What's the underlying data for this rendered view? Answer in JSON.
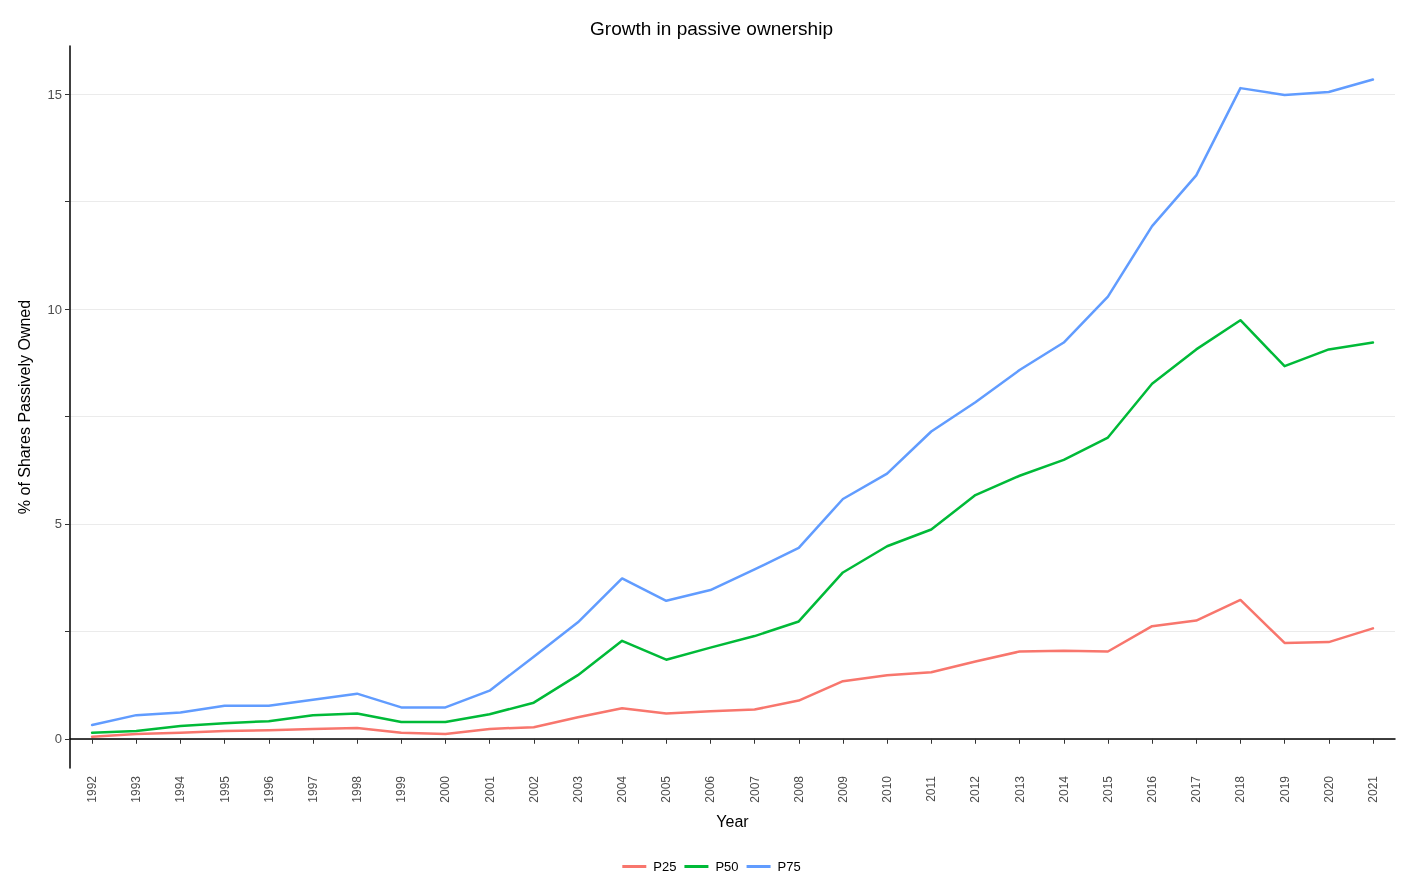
{
  "chart_data": {
    "type": "line",
    "title": "Growth in passive ownership",
    "xlabel": "Year",
    "ylabel": "% of Shares Passively Owned",
    "categories": [
      "1992",
      "1993",
      "1994",
      "1995",
      "1996",
      "1997",
      "1998",
      "1999",
      "2000",
      "2001",
      "2002",
      "2003",
      "2004",
      "2005",
      "2006",
      "2007",
      "2008",
      "2009",
      "2010",
      "2011",
      "2012",
      "2013",
      "2014",
      "2015",
      "2016",
      "2017",
      "2018",
      "2019",
      "2020",
      "2021"
    ],
    "series": [
      {
        "name": "P25",
        "color": "#f8766d",
        "values": [
          0.05,
          0.11,
          0.14,
          0.18,
          0.2,
          0.23,
          0.25,
          0.14,
          0.11,
          0.23,
          0.27,
          0.5,
          0.71,
          0.59,
          0.64,
          0.68,
          0.89,
          1.34,
          1.48,
          1.55,
          1.8,
          2.03,
          2.05,
          2.03,
          2.62,
          2.75,
          3.23,
          2.23,
          2.25,
          2.57
        ]
      },
      {
        "name": "P50",
        "color": "#00ba38",
        "values": [
          0.14,
          0.18,
          0.3,
          0.36,
          0.41,
          0.55,
          0.59,
          0.39,
          0.39,
          0.57,
          0.84,
          1.48,
          2.28,
          1.84,
          2.12,
          2.39,
          2.73,
          3.87,
          4.48,
          4.87,
          5.67,
          6.12,
          6.49,
          7.01,
          8.26,
          9.06,
          9.74,
          8.67,
          9.06,
          9.22
        ]
      },
      {
        "name": "P75",
        "color": "#619cff",
        "values": [
          0.32,
          0.55,
          0.61,
          0.77,
          0.77,
          0.91,
          1.05,
          0.73,
          0.73,
          1.12,
          1.91,
          2.71,
          3.73,
          3.21,
          3.46,
          3.94,
          4.44,
          5.58,
          6.17,
          7.15,
          7.83,
          8.58,
          9.22,
          10.29,
          11.93,
          13.11,
          15.14,
          14.98,
          15.05,
          15.34
        ]
      }
    ],
    "ylim": [
      -0.68,
      16.12
    ],
    "yticks": [
      0,
      {
        "value": 2.5,
        "label": null
      },
      5,
      {
        "value": 7.5,
        "label": null
      },
      10,
      {
        "value": 12.5,
        "label": null
      },
      15
    ],
    "grid": "y",
    "legend": "bottom",
    "marker": "none",
    "line_style": "solid"
  }
}
